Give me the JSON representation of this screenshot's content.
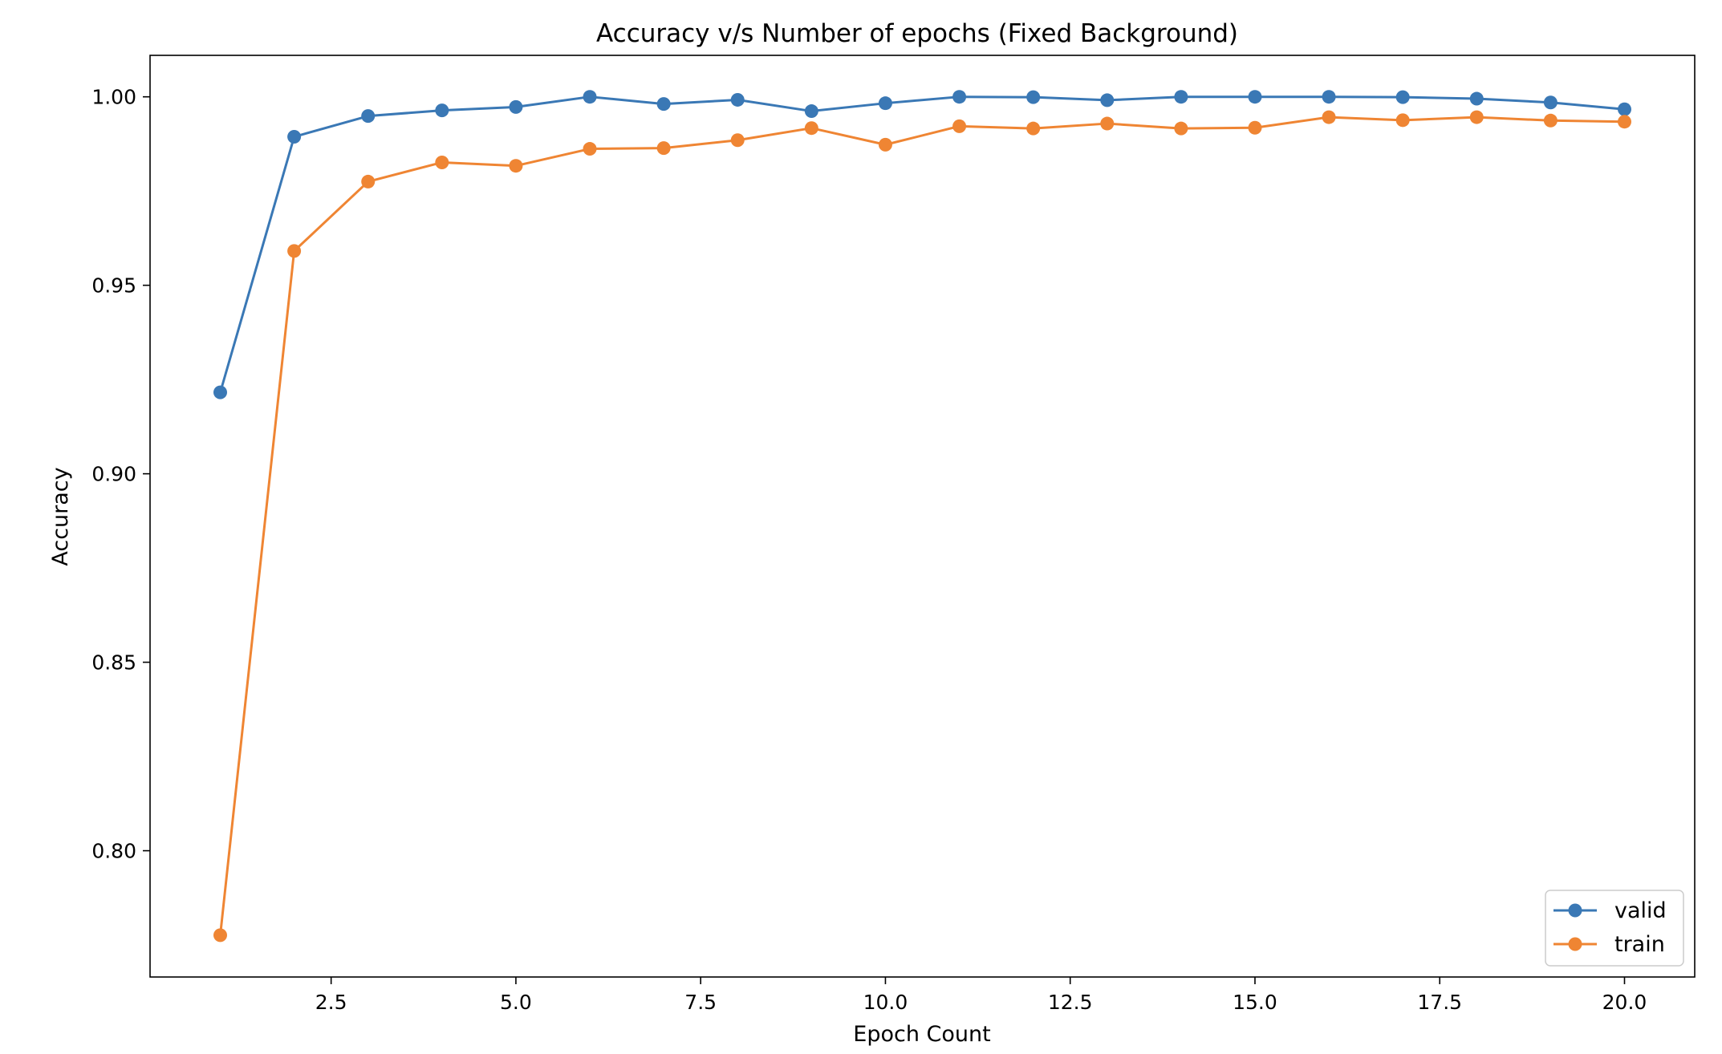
{
  "chart_data": {
    "type": "line",
    "title": "Accuracy v/s Number of epochs (Fixed Background)",
    "xlabel": "Epoch Count",
    "ylabel": "Accuracy",
    "xlim": [
      0.05,
      20.95
    ],
    "ylim": [
      0.7665,
      1.011
    ],
    "xticks": [
      2.5,
      5.0,
      7.5,
      10.0,
      12.5,
      15.0,
      17.5,
      20.0
    ],
    "xtick_labels": [
      "2.5",
      "5.0",
      "7.5",
      "10.0",
      "12.5",
      "15.0",
      "17.5",
      "20.0"
    ],
    "yticks": [
      0.8,
      0.85,
      0.9,
      0.95,
      1.0
    ],
    "ytick_labels": [
      "0.80",
      "0.85",
      "0.90",
      "0.95",
      "1.00"
    ],
    "grid": false,
    "legend_position": "lower-right",
    "x": [
      1,
      2,
      3,
      4,
      5,
      6,
      7,
      8,
      9,
      10,
      11,
      12,
      13,
      14,
      15,
      16,
      17,
      18,
      19,
      20
    ],
    "series": [
      {
        "name": "valid",
        "color": "#3a78b5",
        "values": [
          0.9216,
          0.9894,
          0.9949,
          0.9964,
          0.9973,
          1.0,
          0.9981,
          0.9992,
          0.9962,
          0.9983,
          1.0,
          0.9999,
          0.9991,
          1.0,
          1.0,
          1.0,
          0.9999,
          0.9995,
          0.9985,
          0.9967
        ]
      },
      {
        "name": "train",
        "color": "#ef8533",
        "values": [
          0.7776,
          0.9591,
          0.9775,
          0.9826,
          0.9817,
          0.9862,
          0.9864,
          0.9885,
          0.9917,
          0.9873,
          0.9922,
          0.9916,
          0.9929,
          0.9916,
          0.9918,
          0.9946,
          0.9938,
          0.9946,
          0.9937,
          0.9934
        ]
      }
    ]
  }
}
